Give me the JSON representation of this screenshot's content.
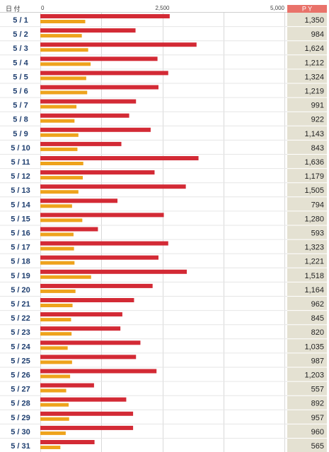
{
  "header": {
    "date_column": "日  付",
    "value_column": "P Y"
  },
  "colors": {
    "bar_primary": "#d32a35",
    "bar_secondary": "#eea31c",
    "value_column_bg": "#e4e1d2",
    "value_header_bg": "#e9726a",
    "date_text": "#1f3f70",
    "grid": "#d9d9d9"
  },
  "chart_data": {
    "type": "bar",
    "orientation": "horizontal",
    "xlim": [
      0,
      5000
    ],
    "xticks": [
      {
        "value": 0,
        "label": "0"
      },
      {
        "value": 2500,
        "label": "2,500"
      },
      {
        "value": 5000,
        "label": "5,000"
      }
    ],
    "grid": true,
    "categories": [
      "5 / 1",
      "5 / 2",
      "5 / 3",
      "5 / 4",
      "5 / 5",
      "5 / 6",
      "5 / 7",
      "5 / 8",
      "5 / 9",
      "5 / 10",
      "5 / 11",
      "5 / 12",
      "5 / 13",
      "5 / 14",
      "5 / 15",
      "5 / 16",
      "5 / 17",
      "5 / 18",
      "5 / 19",
      "5 / 20",
      "5 / 21",
      "5 / 22",
      "5 / 23",
      "5 / 24",
      "5 / 25",
      "5 / 26",
      "5 / 27",
      "5 / 28",
      "5 / 29",
      "5 / 30",
      "5 / 31"
    ],
    "series": [
      {
        "values": [
          2650,
          1950,
          3200,
          2400,
          2620,
          2420,
          1960,
          1820,
          2260,
          1660,
          3240,
          2340,
          2980,
          1580,
          2530,
          1180,
          2620,
          2420,
          3000,
          2300,
          1920,
          1680,
          1640,
          2050,
          1960,
          2380,
          1100,
          1760,
          1900,
          1900,
          1110
        ]
      },
      {
        "values": [
          920,
          850,
          980,
          1030,
          940,
          960,
          740,
          700,
          780,
          760,
          880,
          870,
          780,
          650,
          860,
          680,
          690,
          700,
          1040,
          720,
          660,
          630,
          640,
          560,
          650,
          610,
          530,
          580,
          590,
          520,
          410
        ]
      }
    ],
    "value_labels": [
      "1,350",
      "984",
      "1,624",
      "1,212",
      "1,324",
      "1,219",
      "991",
      "922",
      "1,143",
      "843",
      "1,636",
      "1,179",
      "1,505",
      "794",
      "1,280",
      "593",
      "1,323",
      "1,221",
      "1,518",
      "1,164",
      "962",
      "845",
      "820",
      "1,035",
      "987",
      "1,203",
      "557",
      "892",
      "957",
      "960",
      "565"
    ]
  }
}
